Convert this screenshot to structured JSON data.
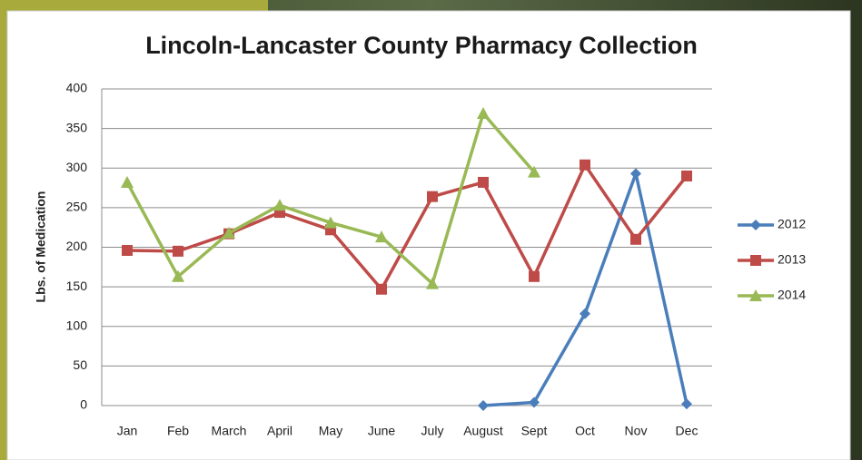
{
  "chart_data": {
    "type": "line",
    "title": "Lincoln-Lancaster County Pharmacy Collection",
    "y_label": "Lbs. of Medication",
    "categories": [
      "Jan",
      "Feb",
      "March",
      "April",
      "May",
      "June",
      "July",
      "August",
      "Sept",
      "Oct",
      "Nov",
      "Dec"
    ],
    "series": [
      {
        "name": "2012",
        "color": "#4a7ebb",
        "marker": "diamond",
        "values": [
          null,
          null,
          null,
          null,
          null,
          null,
          null,
          0,
          4,
          116,
          293,
          2
        ]
      },
      {
        "name": "2013",
        "color": "#be4b48",
        "marker": "square",
        "values": [
          196,
          195,
          217,
          244,
          222,
          147,
          264,
          282,
          163,
          304,
          210,
          290
        ]
      },
      {
        "name": "2014",
        "color": "#98b954",
        "marker": "triangle",
        "values": [
          282,
          163,
          218,
          253,
          231,
          213,
          154,
          369,
          295,
          null,
          null,
          null
        ]
      }
    ],
    "ylim": [
      0,
      400
    ],
    "yticks": [
      0,
      50,
      100,
      150,
      200,
      250,
      300,
      350,
      400
    ],
    "grid": true,
    "legend": "right"
  }
}
